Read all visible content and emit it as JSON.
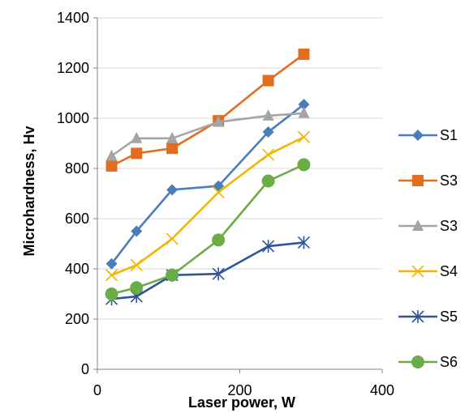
{
  "chart_data": {
    "type": "scatter",
    "xlabel": "Laser power, W",
    "ylabel": "Microhardness, Hv",
    "xlim": [
      0,
      400
    ],
    "ylim": [
      0,
      1400
    ],
    "x_ticks": [
      "0",
      "200",
      "400"
    ],
    "y_ticks": [
      "0",
      "200",
      "400",
      "600",
      "800",
      "1000",
      "1200",
      "1400"
    ],
    "grid": "horizontal",
    "legend_position": "right",
    "series": [
      {
        "name": "S1",
        "color": "#4a7ebb",
        "marker": "diamond",
        "x": [
          20,
          55,
          105,
          170,
          240,
          290
        ],
        "y": [
          420,
          550,
          715,
          730,
          945,
          1055
        ]
      },
      {
        "name": "S3",
        "color": "#e46c1f",
        "marker": "square",
        "x": [
          20,
          55,
          105,
          170,
          240,
          290
        ],
        "y": [
          810,
          860,
          880,
          990,
          1150,
          1255
        ]
      },
      {
        "name": "S3",
        "color": "#a5a5a5",
        "marker": "triangle",
        "x": [
          20,
          55,
          105,
          170,
          240,
          290
        ],
        "y": [
          850,
          920,
          920,
          985,
          1010,
          1020
        ]
      },
      {
        "name": "S4",
        "color": "#f2b600",
        "marker": "x",
        "x": [
          20,
          55,
          105,
          170,
          240,
          290
        ],
        "y": [
          375,
          415,
          520,
          705,
          855,
          925
        ]
      },
      {
        "name": "S5",
        "color": "#2e5597",
        "marker": "star",
        "x": [
          20,
          55,
          105,
          170,
          240,
          290
        ],
        "y": [
          280,
          290,
          375,
          380,
          490,
          505
        ]
      },
      {
        "name": "S6",
        "color": "#6aac46",
        "marker": "circle",
        "x": [
          20,
          55,
          105,
          170,
          240,
          290
        ],
        "y": [
          300,
          325,
          375,
          515,
          750,
          815
        ]
      }
    ]
  }
}
